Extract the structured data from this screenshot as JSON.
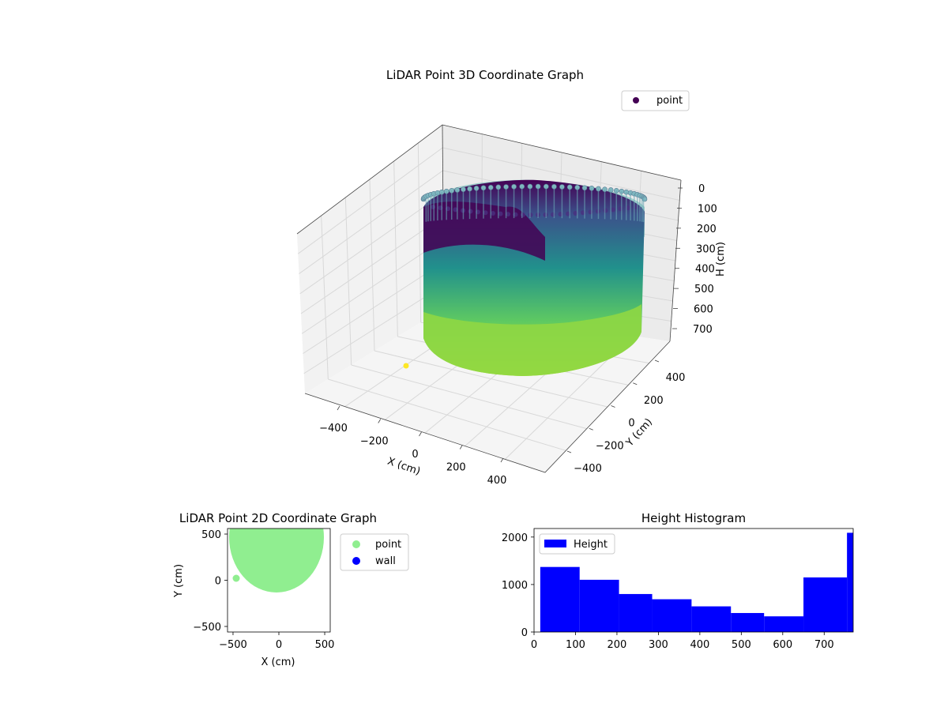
{
  "colors": {
    "viridis_top": "#440154",
    "viridis_mid": "#21918c",
    "viridis_low": "#7ad151",
    "viridis_bottom": "#fde725",
    "point_2d": "#90ee90",
    "wall_2d": "#0000ff",
    "histogram": "#0000ff"
  },
  "chart_data": [
    {
      "type": "scatter",
      "projection": "3d",
      "title": "LiDAR Point 3D Coordinate Graph",
      "xlabel": "X (cm)",
      "ylabel": "Y (cm)",
      "zlabel": "H (cm)",
      "x_ticks": [
        "−400",
        "−200",
        "0",
        "200",
        "400"
      ],
      "y_ticks": [
        "−400",
        "−200",
        "0",
        "200",
        "400"
      ],
      "z_ticks": [
        "0",
        "100",
        "200",
        "300",
        "400",
        "500",
        "600",
        "700"
      ],
      "xlim": [
        -550,
        550
      ],
      "ylim": [
        -550,
        550
      ],
      "zlim": [
        0,
        780
      ],
      "z_inverted": true,
      "legend": [
        {
          "label": "point",
          "color": "#440154"
        }
      ],
      "legend_position": "upper right",
      "colormap": "viridis",
      "shape": "cylindrical wall, radius ~480 cm, heights 0–780 cm",
      "outlier": {
        "x": -460,
        "y": 20,
        "h": 780
      }
    },
    {
      "type": "scatter",
      "title": "LiDAR Point 2D Coordinate Graph",
      "xlabel": "X (cm)",
      "ylabel": "Y (cm)",
      "x_ticks": [
        "−500",
        "0",
        "500"
      ],
      "y_ticks": [
        "−500",
        "0",
        "500"
      ],
      "xlim": [
        -560,
        560
      ],
      "ylim": [
        -560,
        560
      ],
      "legend": [
        {
          "label": "point",
          "color": "#90ee90"
        },
        {
          "label": "wall",
          "color": "#0000ff"
        }
      ],
      "legend_position": "outside right",
      "shape": "filled disk, radius ~500 cm, centered (0, 50)",
      "outlier": {
        "x": -460,
        "y": 20
      }
    },
    {
      "type": "bar",
      "subtype": "histogram",
      "title": "Height Histogram",
      "xlabel": "",
      "ylabel": "",
      "x_ticks": [
        "0",
        "100",
        "200",
        "300",
        "400",
        "500",
        "600",
        "700"
      ],
      "y_ticks": [
        "0",
        "1000",
        "2000"
      ],
      "xlim": [
        0,
        770
      ],
      "ylim": [
        0,
        2180
      ],
      "legend": [
        {
          "label": "Height",
          "color": "#0000ff"
        }
      ],
      "legend_position": "upper left",
      "bins": [
        {
          "x0": 15,
          "x1": 110,
          "count": 1370
        },
        {
          "x0": 110,
          "x1": 205,
          "count": 1100
        },
        {
          "x0": 205,
          "x1": 285,
          "count": 800
        },
        {
          "x0": 285,
          "x1": 380,
          "count": 690
        },
        {
          "x0": 380,
          "x1": 475,
          "count": 540
        },
        {
          "x0": 475,
          "x1": 555,
          "count": 400
        },
        {
          "x0": 555,
          "x1": 650,
          "count": 330
        },
        {
          "x0": 650,
          "x1": 755,
          "count": 1150
        },
        {
          "x0": 755,
          "x1": 770,
          "count": 2090
        }
      ]
    }
  ]
}
